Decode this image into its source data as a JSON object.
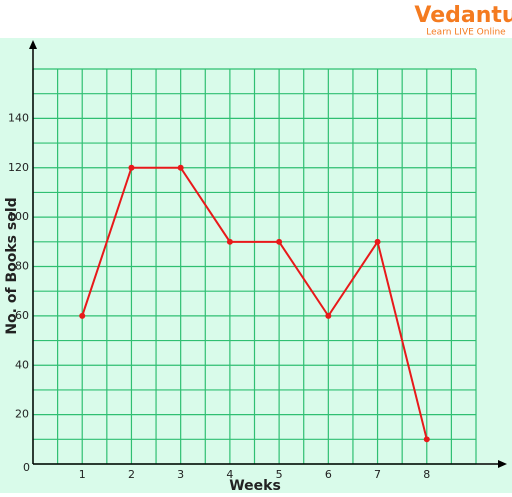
{
  "chart_data": {
    "type": "line",
    "brand": "Vedantu",
    "brand_tagline": "Learn LIVE Online",
    "x_label": "Weeks",
    "y_label": "No. of Books sold",
    "x": [
      1,
      2,
      3,
      4,
      5,
      6,
      7,
      8
    ],
    "series": [
      {
        "color": "#e8191a",
        "values": [
          60,
          120,
          120,
          90,
          90,
          60,
          90,
          10
        ]
      }
    ],
    "xlim": [
      0,
      9
    ],
    "ylim": [
      0,
      160
    ],
    "xticks": [
      1,
      2,
      3,
      4,
      5,
      6,
      7,
      8
    ],
    "yticks": [
      0,
      20,
      40,
      60,
      80,
      100,
      120,
      140
    ],
    "xgrid": [
      0,
      0.5,
      1,
      1.5,
      2,
      2.5,
      3,
      3.5,
      4,
      4.5,
      5,
      5.5,
      6,
      6.5,
      7,
      7.5,
      8,
      8.5,
      9
    ],
    "ygrid": [
      0,
      10,
      20,
      30,
      40,
      50,
      60,
      70,
      80,
      90,
      100,
      110,
      120,
      130,
      140,
      150,
      160
    ],
    "grid": true,
    "grid_color": "#2fbf72",
    "background": "#d9fbea"
  }
}
